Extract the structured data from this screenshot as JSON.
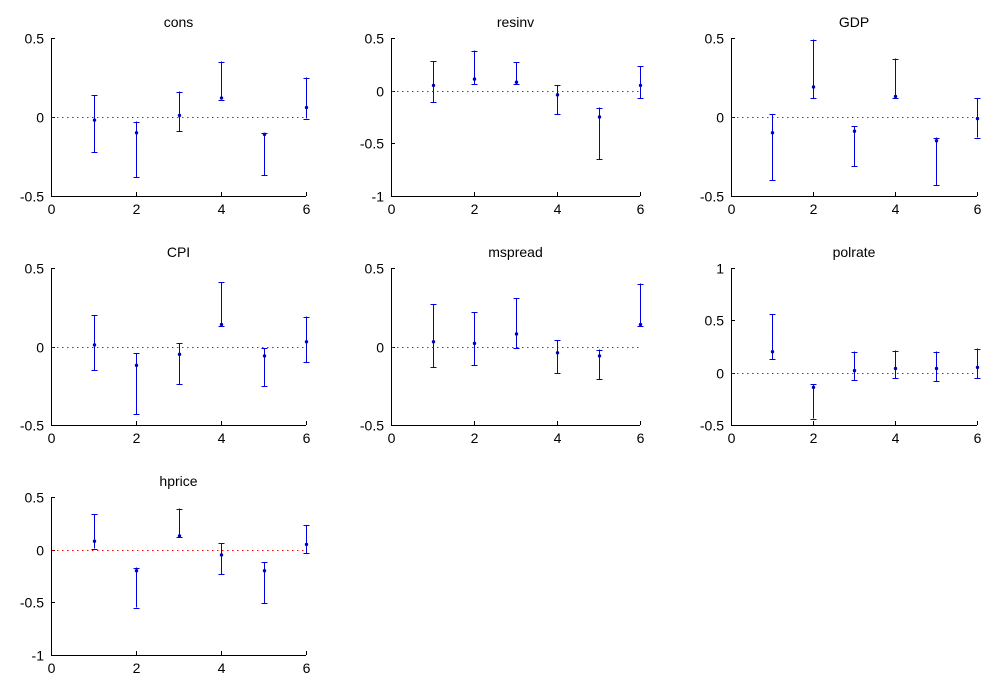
{
  "chart_data": [
    {
      "type": "scatter",
      "title": "cons",
      "xlim": [
        0,
        6
      ],
      "ylim": [
        -0.5,
        0.5
      ],
      "xticks": [
        0,
        2,
        4,
        6
      ],
      "yticks": [
        -0.5,
        0,
        0.5
      ],
      "xtick_labels": [
        "0",
        "2",
        "4",
        "6"
      ],
      "ytick_labels": [
        "-0.5",
        "0",
        "0.5"
      ],
      "x": [
        1,
        2,
        3,
        4,
        5,
        6
      ],
      "y": [
        -0.02,
        -0.1,
        0.01,
        0.12,
        -0.11,
        0.06
      ],
      "lower": [
        -0.22,
        -0.38,
        -0.09,
        0.11,
        -0.37,
        -0.01
      ],
      "upper": [
        0.14,
        -0.03,
        0.16,
        0.35,
        -0.1,
        0.25
      ]
    },
    {
      "type": "scatter",
      "title": "resinv",
      "xlim": [
        0,
        6
      ],
      "ylim": [
        -1,
        0.5
      ],
      "xticks": [
        0,
        2,
        4,
        6
      ],
      "yticks": [
        -1,
        -0.5,
        0,
        0.5
      ],
      "xtick_labels": [
        "0",
        "2",
        "4",
        "6"
      ],
      "ytick_labels": [
        "-1",
        "-0.5",
        "0",
        "0.5"
      ],
      "x": [
        1,
        2,
        3,
        4,
        5,
        6
      ],
      "y": [
        0.05,
        0.11,
        0.08,
        -0.04,
        -0.25,
        0.05
      ],
      "lower": [
        -0.11,
        0.06,
        0.06,
        -0.22,
        -0.65,
        -0.07
      ],
      "upper": [
        0.28,
        0.38,
        0.27,
        0.05,
        -0.16,
        0.23
      ]
    },
    {
      "type": "scatter",
      "title": "GDP",
      "xlim": [
        0,
        6
      ],
      "ylim": [
        -0.5,
        0.5
      ],
      "xticks": [
        0,
        2,
        4,
        6
      ],
      "yticks": [
        -0.5,
        0,
        0.5
      ],
      "xtick_labels": [
        "0",
        "2",
        "4",
        "6"
      ],
      "ytick_labels": [
        "-0.5",
        "0",
        "0.5"
      ],
      "x": [
        1,
        2,
        3,
        4,
        5,
        6
      ],
      "y": [
        -0.1,
        0.19,
        -0.09,
        0.13,
        -0.15,
        -0.01
      ],
      "lower": [
        -0.4,
        0.12,
        -0.31,
        0.12,
        -0.43,
        -0.13
      ],
      "upper": [
        0.02,
        0.49,
        -0.06,
        0.37,
        -0.13,
        0.12
      ]
    },
    {
      "type": "scatter",
      "title": "CPI",
      "xlim": [
        0,
        6
      ],
      "ylim": [
        -0.5,
        0.5
      ],
      "xticks": [
        0,
        2,
        4,
        6
      ],
      "yticks": [
        -0.5,
        0,
        0.5
      ],
      "xtick_labels": [
        "0",
        "2",
        "4",
        "6"
      ],
      "ytick_labels": [
        "-0.5",
        "0",
        "0.5"
      ],
      "x": [
        1,
        2,
        3,
        4,
        5,
        6
      ],
      "y": [
        0.01,
        -0.12,
        -0.05,
        0.14,
        -0.06,
        0.03
      ],
      "lower": [
        -0.15,
        -0.43,
        -0.24,
        0.13,
        -0.25,
        -0.1
      ],
      "upper": [
        0.2,
        -0.04,
        0.02,
        0.41,
        -0.01,
        0.19
      ]
    },
    {
      "type": "scatter",
      "title": "mspread",
      "xlim": [
        0,
        6
      ],
      "ylim": [
        -0.5,
        0.5
      ],
      "xticks": [
        0,
        2,
        4,
        6
      ],
      "yticks": [
        -0.5,
        0,
        0.5
      ],
      "xtick_labels": [
        "0",
        "2",
        "4",
        "6"
      ],
      "ytick_labels": [
        "-0.5",
        "0",
        "0.5"
      ],
      "x": [
        1,
        2,
        3,
        4,
        5,
        6
      ],
      "y": [
        0.03,
        0.02,
        0.08,
        -0.04,
        -0.06,
        0.14
      ],
      "lower": [
        -0.13,
        -0.12,
        -0.01,
        -0.17,
        -0.21,
        0.13
      ],
      "upper": [
        0.27,
        0.22,
        0.31,
        0.04,
        -0.02,
        0.4
      ]
    },
    {
      "type": "scatter",
      "title": "polrate",
      "xlim": [
        0,
        6
      ],
      "ylim": [
        -0.5,
        1
      ],
      "xticks": [
        0,
        2,
        4,
        6
      ],
      "yticks": [
        -0.5,
        0,
        0.5,
        1
      ],
      "xtick_labels": [
        "0",
        "2",
        "4",
        "6"
      ],
      "ytick_labels": [
        "-0.5",
        "0",
        "0.5",
        "1"
      ],
      "x": [
        1,
        2,
        3,
        4,
        5,
        6
      ],
      "y": [
        0.2,
        -0.14,
        0.02,
        0.04,
        0.04,
        0.05
      ],
      "lower": [
        0.13,
        -0.44,
        -0.07,
        -0.05,
        -0.08,
        -0.05
      ],
      "upper": [
        0.56,
        -0.11,
        0.2,
        0.21,
        0.2,
        0.23
      ]
    },
    {
      "type": "scatter",
      "title": "hprice",
      "xlim": [
        0,
        6
      ],
      "ylim": [
        -1,
        0.5
      ],
      "xticks": [
        0,
        2,
        4,
        6
      ],
      "yticks": [
        -1,
        -0.5,
        0,
        0.5
      ],
      "xtick_labels": [
        "0",
        "2",
        "4",
        "6"
      ],
      "ytick_labels": [
        "-1",
        "-0.5",
        "0",
        "0.5"
      ],
      "x": [
        1,
        2,
        3,
        4,
        5,
        6
      ],
      "y": [
        0.08,
        -0.2,
        0.13,
        -0.05,
        -0.2,
        0.05
      ],
      "lower": [
        0.01,
        -0.55,
        0.12,
        -0.23,
        -0.51,
        -0.03
      ],
      "upper": [
        0.34,
        -0.17,
        0.39,
        0.06,
        -0.12,
        0.23
      ]
    }
  ],
  "colors": {
    "points": "#0000b4",
    "error_bars": "#0000e6",
    "zero_line": "#ff0000",
    "axes": "#000000"
  }
}
